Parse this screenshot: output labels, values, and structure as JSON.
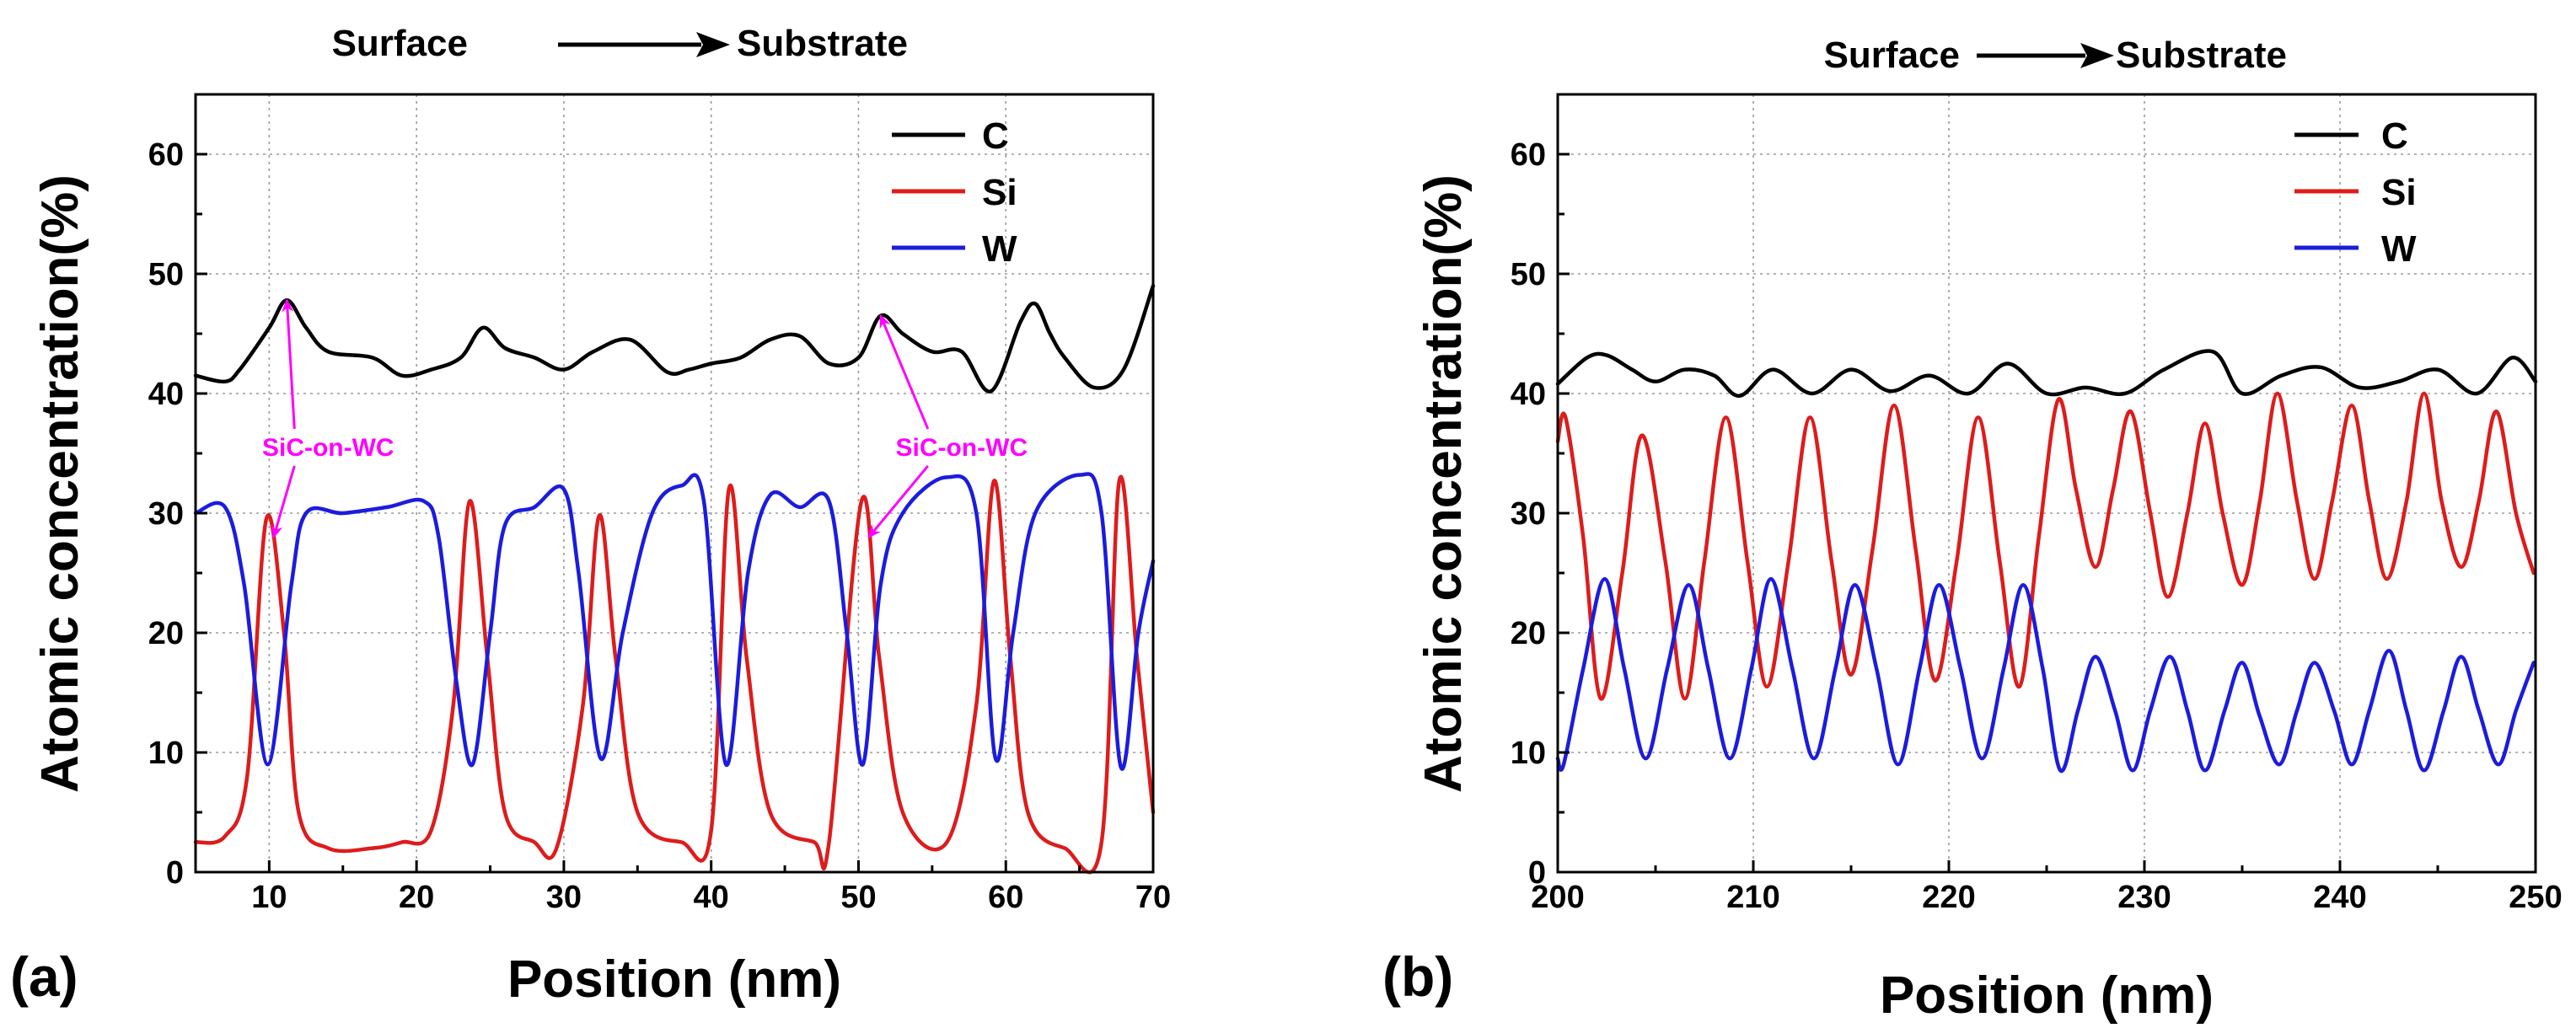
{
  "chart_data": [
    {
      "panel_id": "a",
      "type": "line",
      "panel_label": "(a)",
      "header": {
        "left": "Surface",
        "right": "Substrate",
        "arrow": "→"
      },
      "xlabel": "Position (nm)",
      "ylabel": "Atomic concentration(%)",
      "xlim": [
        5,
        70
      ],
      "ylim": [
        0,
        65
      ],
      "xticks": [
        10,
        20,
        30,
        40,
        50,
        60,
        70
      ],
      "yticks": [
        0,
        10,
        20,
        30,
        40,
        50,
        60
      ],
      "grid": true,
      "legend_position": "top-right",
      "series": [
        {
          "name": "C",
          "color": "#000000",
          "x": [
            5,
            7,
            8,
            10,
            11.2,
            12.5,
            14,
            17,
            19,
            21,
            23,
            24.5,
            26,
            28,
            30,
            32,
            34.5,
            37,
            38.5,
            40,
            42,
            44,
            46,
            48,
            50,
            51.5,
            53,
            55,
            57,
            59,
            61,
            62,
            63,
            64,
            66,
            68,
            70
          ],
          "y": [
            41.5,
            41.0,
            42.0,
            45.5,
            47.8,
            45.5,
            43.5,
            43.0,
            41.5,
            42.0,
            43.0,
            45.5,
            43.8,
            43.0,
            42.0,
            43.5,
            44.5,
            41.8,
            42.0,
            42.5,
            43.0,
            44.5,
            44.8,
            42.5,
            43.0,
            46.5,
            45.0,
            43.5,
            43.5,
            40.2,
            46.0,
            47.5,
            45.0,
            43.0,
            40.5,
            42.0,
            49.0
          ]
        },
        {
          "name": "Si",
          "color": "#dd1c1c",
          "x": [
            5,
            7,
            8.5,
            9.8,
            11,
            12,
            14,
            17,
            19,
            21,
            22.5,
            23.6,
            24.8,
            26,
            28,
            29.5,
            31.3,
            32.4,
            33.5,
            35,
            38,
            40,
            41.2,
            42.4,
            44,
            47,
            48,
            50.2,
            51.4,
            53,
            56,
            58,
            59.2,
            60.3,
            61.5,
            64,
            66.5,
            67.7,
            68.9,
            70
          ],
          "y": [
            2.5,
            3.0,
            8.0,
            29.5,
            20.0,
            5.0,
            2.0,
            2.0,
            2.5,
            3.5,
            14.0,
            31.0,
            18.0,
            5.0,
            2.5,
            2.0,
            14.0,
            29.8,
            18.0,
            5.0,
            2.5,
            3.5,
            32.0,
            18.0,
            5.0,
            2.5,
            2.5,
            31.0,
            18.0,
            5.0,
            2.5,
            14.0,
            32.7,
            18.0,
            5.0,
            2.0,
            2.5,
            32.7,
            18.0,
            5.0
          ]
        },
        {
          "name": "W",
          "color": "#1c1cdd",
          "x": [
            5,
            7,
            8.3,
            9.9,
            11.5,
            12.5,
            15,
            18,
            20.5,
            21.5,
            22.7,
            23.8,
            25,
            26,
            28,
            30,
            31,
            32.5,
            34,
            36,
            38,
            39.5,
            41,
            42.5,
            44,
            46,
            48,
            49.2,
            50.3,
            51.5,
            53,
            56,
            58,
            59.3,
            60.5,
            62,
            65,
            66.5,
            67.8,
            69,
            70
          ],
          "y": [
            30.0,
            30.5,
            24.0,
            9.0,
            24.0,
            30.0,
            30.0,
            30.5,
            31.0,
            28.0,
            16.0,
            9.0,
            20.0,
            29.0,
            30.5,
            32.0,
            25.0,
            9.5,
            20.0,
            30.0,
            32.3,
            31.0,
            9.0,
            25.0,
            31.5,
            30.5,
            31.0,
            20.0,
            9.0,
            24.0,
            30.0,
            33.0,
            30.0,
            9.5,
            20.0,
            30.0,
            33.2,
            30.0,
            8.8,
            20.0,
            26.0
          ]
        }
      ],
      "annotations": [
        {
          "text": "SiC-on-WC",
          "color": "#ff00ff",
          "at_x": 14,
          "at_y": 35.5,
          "points": [
            [
              11.2,
              47.8
            ],
            [
              10.3,
              28.0
            ]
          ]
        },
        {
          "text": "SiC-on-WC",
          "color": "#ff00ff",
          "at_x": 57,
          "at_y": 35.5,
          "points": [
            [
              51.5,
              46.5
            ],
            [
              50.7,
              28.0
            ]
          ]
        }
      ]
    },
    {
      "panel_id": "b",
      "type": "line",
      "panel_label": "(b)",
      "header": {
        "left": "Surface",
        "right": "Substrate",
        "arrow": "→"
      },
      "xlabel": "Position (nm)",
      "ylabel": "Atomic concentration(%)",
      "xlim": [
        200,
        250
      ],
      "ylim": [
        0,
        65
      ],
      "xticks": [
        200,
        210,
        220,
        230,
        240,
        250
      ],
      "yticks": [
        0,
        10,
        20,
        30,
        40,
        50,
        60
      ],
      "grid": true,
      "legend_position": "top-right",
      "series": [
        {
          "name": "C",
          "color": "#000000",
          "x": [
            200,
            201.5,
            202.5,
            203.8,
            205,
            206.5,
            208,
            209.3,
            211,
            213,
            215,
            217,
            219,
            221,
            223,
            225,
            227,
            229,
            231,
            233.5,
            235,
            237,
            239,
            241,
            243,
            245,
            247,
            248.8,
            250
          ],
          "y": [
            40.8,
            43.0,
            43.2,
            42.0,
            41.0,
            42.0,
            41.5,
            39.8,
            42.0,
            40.0,
            42.0,
            40.2,
            41.5,
            40.0,
            42.5,
            40.0,
            40.5,
            40.0,
            42.0,
            43.5,
            40.0,
            41.5,
            42.2,
            40.5,
            41.0,
            42.0,
            40.0,
            43.0,
            41.0
          ]
        },
        {
          "name": "Si",
          "color": "#dd1c1c",
          "x": [
            200,
            200.4,
            201.3,
            202.2,
            203.3,
            204.3,
            205.5,
            206.5,
            207.5,
            208.6,
            209.7,
            210.7,
            211.8,
            212.9,
            214,
            215,
            216.1,
            217.2,
            218.3,
            219.3,
            220.4,
            221.5,
            222.6,
            223.6,
            224.6,
            225.6,
            226.5,
            227.5,
            228.4,
            229.3,
            230.3,
            231.2,
            232.2,
            233.1,
            234,
            235,
            235.9,
            236.8,
            237.8,
            238.7,
            239.6,
            240.6,
            241.5,
            242.4,
            243.4,
            244.3,
            245.2,
            246.2,
            247.1,
            248,
            249,
            249.9
          ],
          "y": [
            36.0,
            38.0,
            28.0,
            14.5,
            25.0,
            36.5,
            26.0,
            14.5,
            26.0,
            38.0,
            26.0,
            15.5,
            26.0,
            38.0,
            26.0,
            16.5,
            27.0,
            39.0,
            27.0,
            16.0,
            26.0,
            38.0,
            26.0,
            15.5,
            28.0,
            39.5,
            32.0,
            25.5,
            32.0,
            38.5,
            30.0,
            23.0,
            30.0,
            37.5,
            30.0,
            24.0,
            31.0,
            40.0,
            31.0,
            24.5,
            31.0,
            39.0,
            31.0,
            24.5,
            31.0,
            40.0,
            31.0,
            25.5,
            31.0,
            38.5,
            30.0,
            25.0
          ]
        },
        {
          "name": "W",
          "color": "#1c1cdd",
          "x": [
            200,
            200.3,
            201.3,
            202.4,
            203.4,
            204.5,
            205.6,
            206.7,
            207.7,
            208.8,
            209.9,
            210.9,
            212,
            213.1,
            214.2,
            215.2,
            216.3,
            217.4,
            218.5,
            219.5,
            220.6,
            221.7,
            222.8,
            223.8,
            224.8,
            225.7,
            226.6,
            227.5,
            228.5,
            229.4,
            230.3,
            231.3,
            232.2,
            233.1,
            234.1,
            235,
            235.9,
            236.9,
            237.8,
            238.7,
            239.7,
            240.6,
            241.5,
            242.5,
            243.4,
            244.3,
            245.3,
            246.2,
            247.1,
            248.1,
            249,
            249.9
          ],
          "y": [
            9.5,
            9.0,
            17.0,
            24.5,
            17.0,
            9.5,
            17.0,
            24.0,
            17.0,
            9.5,
            17.0,
            24.5,
            17.0,
            9.5,
            17.0,
            24.0,
            17.0,
            9.0,
            17.0,
            24.0,
            17.0,
            9.5,
            17.0,
            24.0,
            17.0,
            8.5,
            13.5,
            18.0,
            13.5,
            8.5,
            13.5,
            18.0,
            13.5,
            8.5,
            13.5,
            17.5,
            13.0,
            9.0,
            13.5,
            17.5,
            13.5,
            9.0,
            13.5,
            18.5,
            13.5,
            8.5,
            13.5,
            18.0,
            13.5,
            9.0,
            13.5,
            17.5
          ]
        }
      ],
      "annotations": []
    }
  ]
}
